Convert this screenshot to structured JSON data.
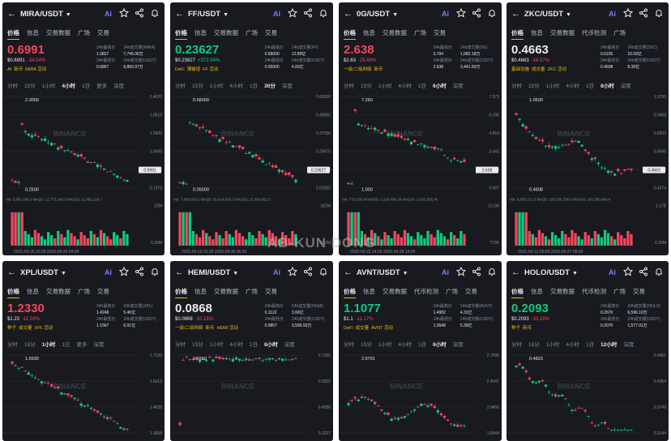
{
  "overlay_watermark": "AB-KUN DONG",
  "watermark_text": "BINANCE",
  "colors": {
    "up": "#0ecb81",
    "down": "#f6465d",
    "accent": "#f0b90b",
    "bg": "#181a20"
  },
  "panels": [
    {
      "pair": "MIRA/USDT",
      "tabs": [
        "价格",
        "信息",
        "交易数据",
        "广场",
        "交易"
      ],
      "price": "0.6991",
      "dir": "down",
      "fiat": "$0.6991",
      "change": "-34.04%",
      "tags": [
        "AI",
        "新币",
        "MIRA 活动"
      ],
      "stats": [
        [
          "24h最高价",
          "1.0827"
        ],
        [
          "24h成交量(MIRA)",
          "7,746.06万"
        ],
        [
          "24h最低价",
          "0.6867"
        ],
        [
          "24h成交额(USDT)",
          "6,850.97万"
        ]
      ],
      "timeframes": [
        "分时",
        "15分",
        "1小时",
        "4小时",
        "1日",
        "更多",
        "深度"
      ],
      "tf_active": 3,
      "axis": [
        "2.4025",
        "1.9515",
        "1.5005",
        "1.0495",
        "0.5985",
        "0.1475"
      ],
      "hi_label": "2.3000",
      "lo_label": "0.2500",
      "last_tag": "0.6991",
      "vol_text": "Vol: 5,681,008.3   MA(5): 12,773,146.3   MA(10): 11,882,116.7",
      "vol_axis": [
        "22M",
        "5.26M"
      ],
      "date": "2025-09-26 20:00          2025-09-29 04:00"
    },
    {
      "pair": "FF/USDT",
      "tabs": [
        "价格",
        "信息",
        "交易数据",
        "广场",
        "交易"
      ],
      "price": "0.23627",
      "dir": "up",
      "fiat": "$0.23627",
      "change": "+372.54%",
      "tags": [
        "DeFi",
        "薄徽增",
        "FF 活动"
      ],
      "stats": [
        [
          "24h最高价",
          "0.58000"
        ],
        [
          "24h成交量(FF)",
          "12.89亿"
        ],
        [
          "24h最低价",
          "0.05000"
        ],
        [
          "24h成交额(USDT)",
          "4.83亿"
        ]
      ],
      "timeframes": [
        "分时",
        "15分",
        "1小时",
        "4小时",
        "1日",
        "30分",
        "深度"
      ],
      "tf_active": 5,
      "axis": [
        "0.60650",
        "0.48990",
        "0.37330",
        "0.25670",
        "0.14010",
        "0.02350"
      ],
      "hi_label": "0.58000",
      "lo_label": "0.05000",
      "last_tag": "0.23627",
      "vol_text": "Vol: 7,065,653.2   MA(5): 30,414,633.2   MA(10): 23,304,652.5",
      "vol_axis": [
        "322M",
        "80.2M"
      ],
      "date": "2025-09-29 21:30          2025-09-30 06:30"
    },
    {
      "pair": "0G/USDT",
      "tabs": [
        "价格",
        "信息",
        "交易数据",
        "广场",
        "交易"
      ],
      "price": "2.638",
      "dir": "down",
      "fiat": "$2.63",
      "change": "-25.86%",
      "tags": [
        "一级/二级网络",
        "新币"
      ],
      "stats": [
        [
          "24h最高价",
          "3.794"
        ],
        [
          "24h成交量(0G)",
          "1,082.18万"
        ],
        [
          "24h最低价",
          "2.638"
        ],
        [
          "24h成交额(USDT)",
          "3,441.50万"
        ]
      ],
      "timeframes": [
        "分时",
        "15分",
        "1小时",
        "4小时",
        "1日",
        "6小时",
        "深度"
      ],
      "tf_active": 5,
      "axis": [
        "7.573",
        "6.196",
        "4.818",
        "3.441",
        "2.064",
        "0.687"
      ],
      "hi_label": "7.260",
      "lo_label": "1.000",
      "last_tag": "2.638",
      "vol_text": "Vol: 773,105.34   MA(5): 2,320,480.26   MA(10): 2,032,955.46",
      "vol_axis": [
        "31.5M",
        "773K"
      ],
      "date": "2025-09-22 14:00          2025-09-28 14:00"
    },
    {
      "pair": "ZKC/USDT",
      "tabs": [
        "价格",
        "信息",
        "交易数据",
        "代币检测",
        "广场"
      ],
      "price": "0.4663",
      "dir": "white",
      "fiat": "$0.4663",
      "change": "-16.57%",
      "tags": [
        "基础设施",
        "成交量",
        "ZKC 活动"
      ],
      "stats": [
        [
          "24h最高价",
          "0.6155"
        ],
        [
          "24h成交量(ZKC)",
          "15.09亿"
        ],
        [
          "24h最低价",
          "0.4608"
        ],
        [
          "24h成交额(USDT)",
          "8.39亿"
        ]
      ],
      "timeframes": [
        "分时",
        "15分",
        "1小时",
        "4小时",
        "1日",
        "8小时",
        "深度"
      ],
      "tf_active": 5,
      "axis": [
        "1.0795",
        "0.9458",
        "0.8202",
        "0.6946",
        "0.5610",
        "0.4374"
      ],
      "hi_label": "1.0500",
      "lo_label": "0.4608",
      "last_tag": "0.4663",
      "vol_text": "Vol: 6,055,711.5   MA(5): 316,536,790.6   MA(10): 182,280,480.4",
      "vol_axis": [
        "1.17B",
        "6.05M"
      ],
      "date": "2025-09-21 00:00          2025-09-27 00:00"
    },
    {
      "pair": "XPL/USDT",
      "tabs": [
        "价格",
        "信息",
        "交易数据",
        "广场",
        "交易"
      ],
      "price": "1.2330",
      "dir": "down",
      "fiat": "$1.23",
      "change": "-11.03%",
      "tags": [
        "种子",
        "成交量",
        "XPL 活动"
      ],
      "stats": [
        [
          "24h最高价",
          "1.4248"
        ],
        [
          "24h成交量(XPL)",
          "5.46亿"
        ],
        [
          "24h最低价",
          "1.1567"
        ],
        [
          "24h成交额(USDT)",
          "6.91亿"
        ]
      ],
      "timeframes": [
        "分时",
        "15分",
        "1小时",
        "1日",
        "更多",
        "深度"
      ],
      "tf_active": 2,
      "axis": [
        "1.7193",
        "1.6013",
        "1.4838",
        "1.3658"
      ],
      "hi_label": "1.6930",
      "lo_label": "",
      "last_tag": "",
      "vol_text": "",
      "vol_axis": [],
      "date": ""
    },
    {
      "pair": "HEMI/USDT",
      "tabs": [
        "价格",
        "信息",
        "交易数据",
        "广场",
        "交易"
      ],
      "price": "0.0868",
      "dir": "white",
      "fiat": "$0.0868",
      "change": "-10.18%",
      "tags": [
        "一级/二级网络",
        "新币",
        "HEMI 活动"
      ],
      "stats": [
        [
          "24h最高价",
          "0.1122"
        ],
        [
          "24h成交量(HEMI)",
          "3.66亿"
        ],
        [
          "24h最低价",
          "0.0857"
        ],
        [
          "24h成交额(USDT)",
          "3,599.93万"
        ]
      ],
      "timeframes": [
        "分时",
        "15分",
        "1小时",
        "4小时",
        "1日",
        "6小时",
        "深度"
      ],
      "tf_active": 5,
      "axis": [
        "0.7266",
        "0.5922",
        "0.4580",
        "0.3237"
      ],
      "hi_label": "0.6960",
      "lo_label": "",
      "last_tag": "",
      "vol_text": "",
      "vol_axis": [],
      "date": ""
    },
    {
      "pair": "AVNT/USDT",
      "tabs": [
        "价格",
        "信息",
        "交易数据",
        "代币检测",
        "广场",
        "交易"
      ],
      "price": "1.1077",
      "dir": "up",
      "fiat": "$1.1",
      "change": "-11.17%",
      "tags": [
        "DeFi",
        "成交量",
        "AVNT 活动"
      ],
      "stats": [
        [
          "24h最高价",
          "1.4982"
        ],
        [
          "24h成交量(AVNT)",
          "4.31亿"
        ],
        [
          "24h最低价",
          "1.0948"
        ],
        [
          "24h成交额(USDT)",
          "5.39亿"
        ]
      ],
      "timeframes": [
        "分时",
        "15分",
        "1小时",
        "4小时",
        "1日",
        "6小时",
        "深度"
      ],
      "tf_active": 5,
      "axis": [
        "2.7595",
        "2.4047",
        "2.0456",
        "1.6944"
      ],
      "hi_label": "2.6791",
      "lo_label": "",
      "last_tag": "",
      "vol_text": "",
      "vol_axis": [],
      "date": ""
    },
    {
      "pair": "HOLO/USDT",
      "tabs": [
        "价格",
        "信息",
        "交易数据",
        "代币检测",
        "广场",
        "交易"
      ],
      "price": "0.2093",
      "dir": "up",
      "fiat": "$0.2093",
      "change": "-10.18%",
      "tags": [
        "种子",
        "新币"
      ],
      "stats": [
        [
          "24h最高价",
          "0.2670"
        ],
        [
          "24h成交量(HOLO)",
          "6,596.10万"
        ],
        [
          "24h最低价",
          "0.2070"
        ],
        [
          "24h成交额(USDT)",
          "1,577.01万"
        ]
      ],
      "timeframes": [
        "分时",
        "15分",
        "1小时",
        "4小时",
        "1日",
        "12小时",
        "深度"
      ],
      "tf_active": 5,
      "axis": [
        "0.4961",
        "0.4354",
        "0.3749",
        "0.3144"
      ],
      "hi_label": "0.4823",
      "lo_label": "",
      "last_tag": "",
      "vol_text": "",
      "vol_axis": [],
      "date": ""
    }
  ]
}
